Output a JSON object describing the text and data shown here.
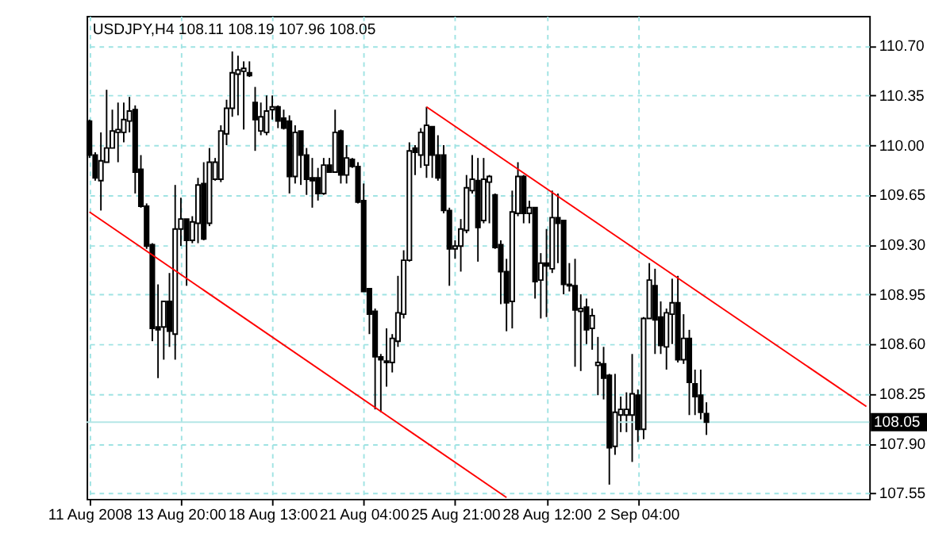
{
  "chart_data": {
    "type": "candlestick",
    "title": "USDJPY,H4  108.11 108.19 107.96 108.05",
    "color": "#000000",
    "categories": [
      "11 Aug 2008",
      null,
      null,
      null,
      null,
      null,
      null,
      null,
      null,
      null,
      null,
      null,
      null,
      null,
      null,
      null,
      "13 Aug 20:00",
      null,
      null,
      null,
      null,
      null,
      null,
      null,
      null,
      null,
      null,
      null,
      null,
      null,
      null,
      null,
      "18 Aug 13:00",
      null,
      null,
      null,
      null,
      null,
      null,
      null,
      null,
      null,
      null,
      null,
      null,
      null,
      null,
      null,
      "21 Aug 04:00",
      null,
      null,
      null,
      null,
      null,
      null,
      null,
      null,
      null,
      null,
      null,
      null,
      null,
      null,
      null,
      "25 Aug 21:00",
      null,
      null,
      null,
      null,
      null,
      null,
      null,
      null,
      null,
      null,
      null,
      null,
      null,
      null,
      null,
      "28 Aug 12:00",
      null,
      null,
      null,
      null,
      null,
      null,
      null,
      null,
      null,
      null,
      null,
      null,
      null,
      null,
      null,
      "2 Sep 04:00",
      null,
      null,
      null,
      null,
      null,
      null,
      null,
      null,
      null,
      null,
      null,
      null,
      null,
      null,
      null,
      null,
      null,
      null,
      null,
      null,
      null,
      null,
      null,
      null,
      null,
      null,
      null,
      null,
      null,
      null,
      null,
      null,
      null,
      null,
      null,
      null,
      null,
      null,
      null,
      null
    ],
    "ohlc": [
      [
        110.17,
        110.18,
        109.91,
        109.93
      ],
      [
        109.93,
        109.95,
        109.75,
        109.77
      ],
      [
        109.75,
        110.09,
        109.54,
        109.89
      ],
      [
        109.88,
        110.39,
        109.88,
        109.98
      ],
      [
        109.98,
        110.25,
        109.98,
        110.1
      ],
      [
        110.09,
        110.3,
        109.88,
        110.11
      ],
      [
        110.09,
        110.3,
        110.02,
        110.18
      ],
      [
        110.17,
        110.34,
        110.09,
        110.24
      ],
      [
        110.25,
        110.28,
        109.66,
        109.81
      ],
      [
        109.83,
        109.93,
        109.56,
        109.57
      ],
      [
        109.57,
        109.59,
        109.27,
        109.29
      ],
      [
        109.3,
        109.31,
        108.62,
        108.71
      ],
      [
        108.72,
        109.02,
        108.36,
        108.7
      ],
      [
        108.72,
        108.9,
        108.49,
        108.9
      ],
      [
        108.9,
        109.1,
        108.58,
        108.69
      ],
      [
        108.67,
        109.72,
        108.49,
        109.41
      ],
      [
        109.41,
        109.63,
        109.29,
        109.48
      ],
      [
        109.48,
        109.48,
        109.01,
        109.33
      ],
      [
        109.33,
        109.5,
        109.31,
        109.46
      ],
      [
        109.45,
        109.77,
        109.31,
        109.72
      ],
      [
        109.73,
        109.88,
        109.33,
        109.34
      ],
      [
        109.45,
        109.98,
        109.43,
        109.88
      ],
      [
        109.76,
        109.91,
        109.75,
        109.88
      ],
      [
        109.76,
        110.14,
        109.74,
        110.1
      ],
      [
        110.08,
        110.32,
        110.0,
        110.26
      ],
      [
        110.26,
        110.66,
        110.2,
        110.51
      ],
      [
        110.5,
        110.63,
        110.21,
        110.53
      ],
      [
        110.52,
        110.59,
        110.11,
        110.54
      ],
      [
        110.51,
        110.59,
        110.48,
        110.49
      ],
      [
        110.3,
        110.41,
        109.96,
        110.18
      ],
      [
        110.1,
        110.3,
        110.07,
        110.2
      ],
      [
        110.09,
        110.35,
        110.07,
        110.24
      ],
      [
        110.25,
        110.35,
        110.18,
        110.27
      ],
      [
        110.27,
        110.28,
        110.12,
        110.17
      ],
      [
        110.19,
        110.25,
        110.11,
        110.12
      ],
      [
        110.17,
        110.21,
        109.66,
        109.78
      ],
      [
        109.78,
        110.14,
        109.73,
        110.09
      ],
      [
        110.1,
        110.1,
        109.72,
        109.93
      ],
      [
        109.93,
        109.98,
        109.65,
        109.76
      ],
      [
        109.77,
        109.91,
        109.56,
        109.75
      ],
      [
        109.77,
        109.84,
        109.61,
        109.66
      ],
      [
        109.66,
        109.91,
        109.65,
        109.86
      ],
      [
        109.86,
        109.91,
        109.81,
        109.81
      ],
      [
        109.81,
        110.25,
        109.81,
        110.09
      ],
      [
        110.1,
        110.11,
        109.73,
        109.79
      ],
      [
        109.79,
        110.0,
        109.73,
        109.91
      ],
      [
        109.9,
        109.91,
        109.84,
        109.85
      ],
      [
        109.85,
        109.88,
        109.59,
        109.6
      ],
      [
        109.61,
        109.73,
        108.97,
        108.97
      ],
      [
        108.99,
        108.99,
        108.67,
        108.81
      ],
      [
        108.83,
        108.85,
        108.14,
        108.51
      ],
      [
        108.51,
        108.53,
        108.12,
        108.49
      ],
      [
        108.47,
        108.71,
        108.3,
        108.48
      ],
      [
        108.47,
        108.67,
        108.4,
        108.64
      ],
      [
        108.62,
        109.08,
        108.58,
        108.82
      ],
      [
        108.81,
        109.26,
        108.78,
        109.19
      ],
      [
        109.19,
        110.02,
        109.18,
        109.96
      ],
      [
        109.98,
        110.0,
        109.79,
        109.95
      ],
      [
        109.93,
        110.12,
        109.84,
        110.09
      ],
      [
        109.86,
        110.27,
        109.77,
        110.14
      ],
      [
        110.13,
        110.13,
        109.77,
        109.93
      ],
      [
        109.93,
        110.07,
        109.75,
        109.77
      ],
      [
        109.93,
        110.0,
        109.52,
        109.54
      ],
      [
        109.54,
        109.56,
        109.01,
        109.27
      ],
      [
        109.27,
        109.33,
        109.2,
        109.29
      ],
      [
        109.29,
        109.48,
        109.11,
        109.41
      ],
      [
        109.4,
        109.79,
        109.38,
        109.7
      ],
      [
        109.68,
        109.93,
        109.66,
        109.76
      ],
      [
        109.75,
        109.91,
        109.18,
        109.42
      ],
      [
        109.47,
        109.91,
        109.45,
        109.76
      ],
      [
        109.74,
        109.79,
        109.45,
        109.78
      ],
      [
        109.65,
        109.66,
        109.27,
        109.28
      ],
      [
        109.3,
        109.33,
        108.88,
        109.11
      ],
      [
        109.11,
        109.2,
        108.69,
        108.89
      ],
      [
        108.9,
        109.68,
        108.71,
        109.53
      ],
      [
        109.52,
        109.88,
        109.5,
        109.78
      ],
      [
        109.78,
        109.79,
        109.45,
        109.52
      ],
      [
        109.52,
        109.61,
        109.45,
        109.56
      ],
      [
        109.56,
        109.56,
        108.92,
        109.04
      ],
      [
        109.05,
        109.24,
        108.78,
        109.17
      ],
      [
        109.17,
        109.41,
        108.79,
        109.15
      ],
      [
        109.13,
        109.68,
        109.1,
        109.49
      ],
      [
        109.49,
        109.66,
        109.17,
        109.45
      ],
      [
        109.47,
        109.47,
        108.95,
        109.02
      ],
      [
        109.02,
        109.17,
        108.97,
        109.01
      ],
      [
        109.01,
        109.2,
        108.44,
        108.84
      ],
      [
        108.83,
        108.95,
        108.41,
        108.85
      ],
      [
        108.86,
        108.92,
        108.6,
        108.7
      ],
      [
        108.71,
        108.85,
        108.56,
        108.8
      ],
      [
        108.45,
        108.65,
        108.24,
        108.47
      ],
      [
        108.46,
        108.58,
        108.21,
        108.36
      ],
      [
        108.38,
        108.39,
        107.61,
        107.87
      ],
      [
        107.88,
        108.39,
        107.82,
        108.12
      ],
      [
        108.1,
        108.23,
        107.98,
        108.14
      ],
      [
        108.1,
        108.26,
        107.98,
        108.14
      ],
      [
        108.1,
        108.53,
        107.77,
        108.25
      ],
      [
        108.24,
        108.28,
        107.91,
        108.0
      ],
      [
        108.0,
        108.79,
        107.93,
        108.78
      ],
      [
        108.78,
        109.17,
        108.78,
        109.05
      ],
      [
        109.01,
        109.13,
        108.53,
        108.77
      ],
      [
        108.79,
        108.9,
        108.53,
        108.59
      ],
      [
        108.58,
        108.85,
        108.42,
        108.82
      ],
      [
        108.81,
        109.06,
        108.6,
        108.89
      ],
      [
        108.89,
        109.08,
        108.47,
        108.49
      ],
      [
        108.49,
        108.81,
        108.46,
        108.64
      ],
      [
        108.64,
        108.7,
        108.1,
        108.33
      ],
      [
        108.32,
        108.42,
        108.1,
        108.23
      ],
      [
        108.24,
        108.42,
        108.07,
        108.12
      ],
      [
        108.11,
        108.19,
        107.96,
        108.05
      ],
      null,
      null,
      null,
      null,
      null,
      null,
      null,
      null,
      null,
      null,
      null,
      null,
      null,
      null,
      null,
      null,
      null,
      null,
      null,
      null,
      null,
      null,
      null,
      null,
      null,
      null,
      null,
      null
    ],
    "series": [
      {
        "type": "line",
        "color": "#ff0000",
        "values": [
          null,
          null,
          null,
          null,
          null,
          null,
          null,
          null,
          null,
          null,
          null,
          null,
          null,
          null,
          null,
          null,
          null,
          null,
          null,
          null,
          null,
          null,
          null,
          null,
          null,
          null,
          null,
          null,
          null,
          null,
          null,
          null,
          null,
          null,
          null,
          null,
          null,
          null,
          null,
          null,
          null,
          null,
          null,
          null,
          null,
          null,
          null,
          null,
          null,
          null,
          null,
          null,
          null,
          null,
          null,
          null,
          null,
          null,
          null,
          110.27,
          null,
          null,
          null,
          null,
          null,
          null,
          null,
          null,
          null,
          null,
          null,
          null,
          null,
          null,
          null,
          null,
          null,
          null,
          null,
          null,
          null,
          null,
          null,
          null,
          null,
          null,
          null,
          null,
          null,
          null,
          null,
          null,
          null,
          null,
          null,
          null,
          null,
          null,
          null,
          null,
          null,
          null,
          null,
          null,
          null,
          null,
          null,
          null,
          null,
          null,
          null,
          null,
          null,
          null,
          null,
          null,
          null,
          null,
          null,
          null,
          null,
          null,
          null,
          null,
          null,
          null,
          null,
          null,
          null,
          null,
          null,
          null,
          null,
          null,
          null,
          null,
          108.16
        ]
      },
      {
        "type": "line",
        "color": "#ff0000",
        "values": [
          109.53,
          null,
          null,
          null,
          null,
          null,
          null,
          null,
          null,
          null,
          null,
          null,
          null,
          null,
          null,
          null,
          null,
          null,
          null,
          null,
          null,
          null,
          null,
          null,
          null,
          null,
          null,
          null,
          null,
          null,
          null,
          null,
          null,
          null,
          null,
          null,
          null,
          null,
          null,
          null,
          null,
          null,
          null,
          null,
          null,
          null,
          null,
          null,
          null,
          null,
          null,
          null,
          null,
          null,
          null,
          null,
          null,
          null,
          null,
          null,
          null,
          null,
          null,
          null,
          null,
          null,
          null,
          null,
          null,
          null,
          null,
          null,
          null,
          107.52,
          null,
          null,
          null,
          null,
          null,
          null,
          null,
          null,
          null,
          null,
          null,
          null,
          null,
          null,
          null,
          null,
          null,
          null,
          null,
          null,
          null,
          null,
          null,
          null,
          null,
          null,
          null,
          null,
          null,
          null,
          null,
          null,
          null,
          null,
          null,
          null,
          null,
          null,
          null,
          null,
          null,
          null,
          null,
          null,
          null,
          null,
          null,
          null,
          null,
          null,
          null,
          null,
          null,
          null,
          null,
          null,
          null,
          null,
          null,
          null,
          null,
          null,
          null
        ]
      }
    ],
    "ylim": [
      107.51,
      110.91
    ],
    "yticks": [
      107.55,
      {
        "value": 107.9,
        "label": "107.90"
      },
      108.25,
      {
        "value": 108.6,
        "label": "108.60"
      },
      108.95,
      {
        "value": 109.3,
        "label": "109.30"
      },
      109.65,
      {
        "value": 110,
        "label": "110.00"
      },
      110.35,
      {
        "value": 110.7,
        "label": "110.70"
      }
    ],
    "ref_lines": [
      {
        "axis": "y",
        "value": 108.05,
        "label": "108.05",
        "color": "#b4e6e6",
        "line_style": "solid"
      }
    ],
    "grid": true
  }
}
